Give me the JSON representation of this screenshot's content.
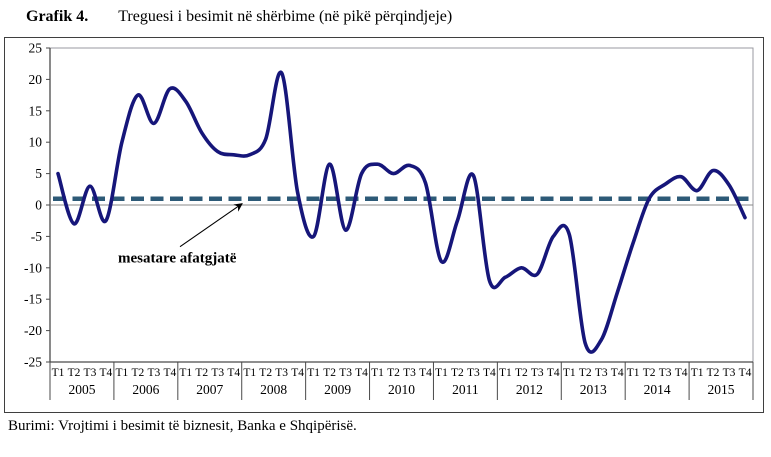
{
  "title": {
    "label": "Grafik 4.",
    "text": "Treguesi i besimit në shërbime (në pikë përqindjeje)"
  },
  "source": "Burimi: Vrojtimi i besimit të biznesit, Banka e Shqipërisë.",
  "colors": {
    "series_line": "#16167a",
    "average_line": "#2d5a77",
    "zero_line": "#888888",
    "frame": "#9a9aa0",
    "axis": "#4a4a4a",
    "text": "#000000"
  },
  "chart_data": {
    "type": "line",
    "title": "Treguesi i besimit në shërbime (në pikë përqindjeje)",
    "years": [
      "2005",
      "2006",
      "2007",
      "2008",
      "2009",
      "2010",
      "2011",
      "2012",
      "2013",
      "2014",
      "2015"
    ],
    "quarter_labels": [
      "T1",
      "T2",
      "T3",
      "T4"
    ],
    "series": [
      {
        "name": "Treguesi i besimit në shërbime",
        "values": [
          5,
          -3,
          3,
          -2.5,
          10,
          17.5,
          13,
          18.5,
          16.5,
          11.5,
          8.5,
          8,
          8,
          10.5,
          21,
          2,
          -5,
          6.5,
          -4,
          5,
          6.5,
          5,
          6.3,
          3.5,
          -9,
          -2.5,
          4.7,
          -12,
          -11.5,
          -10,
          -11,
          -5,
          -4.7,
          -22,
          -21.5,
          -14,
          -6,
          1,
          3.3,
          4.5,
          2.3,
          5.5,
          3.2,
          -2
        ]
      }
    ],
    "average_line": {
      "label": "mesatare afatgjatë",
      "value": 1
    },
    "ylim": [
      -25,
      25
    ],
    "ytick_step": 5,
    "grid": false,
    "legend": "none",
    "annotation": {
      "text": "mesatare afatgjatë"
    }
  }
}
